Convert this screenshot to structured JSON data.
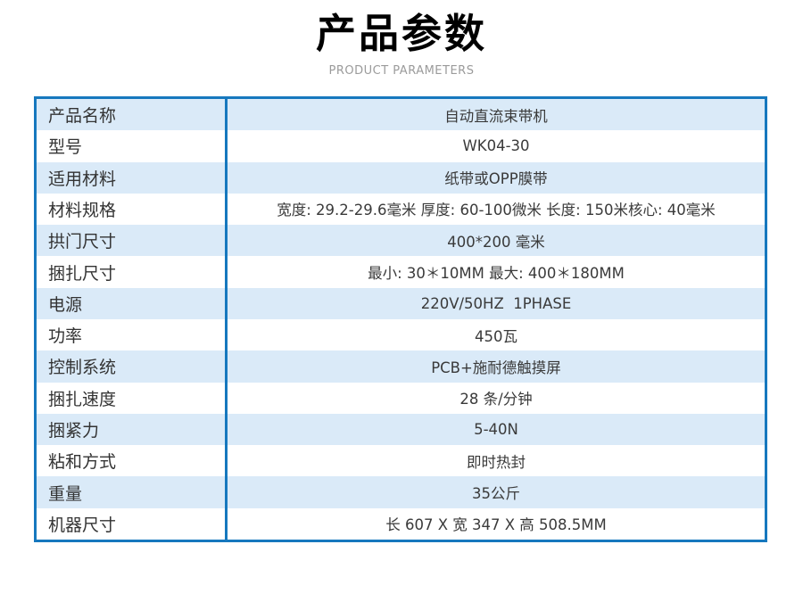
{
  "header": {
    "title": "产品参数",
    "subtitle": "PRODUCT PARAMETERS"
  },
  "table": {
    "rows": [
      {
        "label": "产品名称",
        "value": "自动直流束带机"
      },
      {
        "label": "型号",
        "value": "WK04-30"
      },
      {
        "label": "适用材料",
        "value": "纸带或OPP膜带"
      },
      {
        "label": "材料规格",
        "value": "宽度: 29.2-29.6毫米 厚度: 60-100微米 长度: 150米核心: 40毫米"
      },
      {
        "label": "拱门尺寸",
        "value": "400*200 毫米"
      },
      {
        "label": "捆扎尺寸",
        "value": "最小: 30＊10MM 最大: 400＊180MM"
      },
      {
        "label": "电源",
        "value": "220V/50HZ  1PHASE"
      },
      {
        "label": "功率",
        "value": "450瓦"
      },
      {
        "label": "控制系统",
        "value": "PCB+施耐德触摸屏"
      },
      {
        "label": "捆扎速度",
        "value": "28 条/分钟"
      },
      {
        "label": "捆紧力",
        "value": "5-40N"
      },
      {
        "label": "粘和方式",
        "value": "即时热封"
      },
      {
        "label": "重量",
        "value": "35公斤"
      },
      {
        "label": "机器尺寸",
        "value": "长 607 X 宽 347 X 高 508.5MM"
      }
    ]
  },
  "colors": {
    "border_blue": "#1678be",
    "row_alt_blue": "#daeaf8",
    "title_black": "#000000",
    "subtitle_gray": "#9b9b9b",
    "text_dark": "#333333"
  }
}
